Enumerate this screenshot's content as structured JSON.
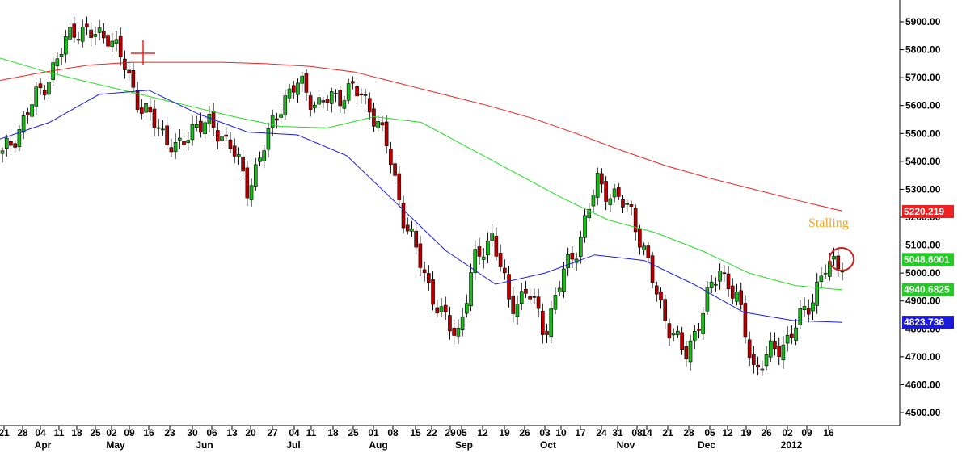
{
  "chart_data": {
    "type": "candlestick",
    "title": "",
    "xlabel": "",
    "ylabel": "",
    "ylim": [
      4450,
      5960
    ],
    "y_ticks": [
      "5900.00",
      "5800.00",
      "5700.00",
      "5600.00",
      "5500.00",
      "5400.00",
      "5300.00",
      "5200.00",
      "5100.00",
      "5000.00",
      "4900.00",
      "4800.00",
      "4700.00",
      "4600.00",
      "4500.00"
    ],
    "x_day_labels": [
      "21",
      "28",
      "04",
      "11",
      "18",
      "25",
      "02",
      "09",
      "16",
      "23",
      "30",
      "06",
      "13",
      "20",
      "27",
      "04",
      "11",
      "18",
      "25",
      "01",
      "08",
      "15",
      "22",
      "29",
      "05",
      "12",
      "19",
      "26",
      "03",
      "10",
      "17",
      "24",
      "31",
      "08",
      "14",
      "21",
      "28",
      "05",
      "12",
      "19",
      "26",
      "02",
      "09",
      "16"
    ],
    "x_month_labels": [
      "Apr",
      "May",
      "Jun",
      "Jul",
      "Aug",
      "Sep",
      "Oct",
      "Nov",
      "Dec",
      "2012"
    ],
    "annotations": [
      {
        "text": "Stalling",
        "color": "#f5a623"
      }
    ],
    "series": [
      {
        "name": "",
        "kind": "moving_average",
        "color": "#ee2222",
        "values": [
          5690,
          5720,
          5745,
          5755,
          5755,
          5755,
          5750,
          5740,
          5720,
          5680,
          5640,
          5600,
          5555,
          5500,
          5440,
          5385,
          5340,
          5300,
          5260,
          5222
        ],
        "last_value": "5220.219"
      },
      {
        "name": "",
        "kind": "moving_average",
        "color": "#22dd22",
        "values": [
          5770,
          5720,
          5680,
          5640,
          5600,
          5560,
          5525,
          5520,
          5560,
          5540,
          5450,
          5360,
          5270,
          5190,
          5145,
          5080,
          5000,
          4955,
          4940
        ],
        "last_value": "4940.6825"
      },
      {
        "name": "",
        "kind": "moving_average",
        "color": "#1a1adf",
        "values": [
          5480,
          5540,
          5640,
          5655,
          5570,
          5505,
          5495,
          5420,
          5250,
          5080,
          4960,
          5000,
          5065,
          5045,
          4960,
          4860,
          4830,
          4823
        ],
        "last_value": "4823.736"
      }
    ],
    "candles_close_path": [
      5420,
      5520,
      5640,
      5740,
      5880,
      5850,
      5860,
      5740,
      5580,
      5520,
      5430,
      5540,
      5520,
      5470,
      5300,
      5460,
      5620,
      5680,
      5600,
      5630,
      5660,
      5600,
      5450,
      5180,
      5020,
      4850,
      4780,
      5040,
      5140,
      4880,
      4940,
      4790,
      4990,
      5120,
      5330,
      5270,
      5220,
      5000,
      4820,
      4700,
      4860,
      5020,
      4900,
      4650,
      4720,
      4770,
      4880,
      5010,
      5048
    ],
    "ohlc": "candles derived from close path"
  }
}
